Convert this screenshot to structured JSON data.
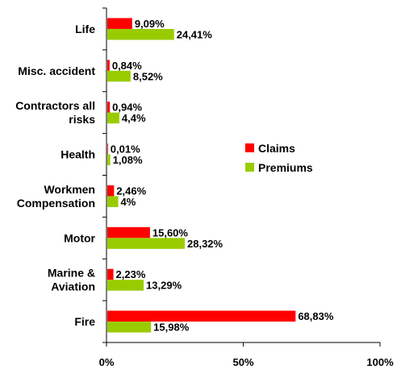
{
  "chart_data": {
    "type": "bar",
    "orientation": "horizontal",
    "categories": [
      [
        "Life"
      ],
      [
        "Misc. accident"
      ],
      [
        "Contractors all",
        "risks"
      ],
      [
        "Health"
      ],
      [
        "Workmen",
        "Compensation"
      ],
      [
        "Motor"
      ],
      [
        "Marine &",
        "Aviation"
      ],
      [
        "Fire"
      ]
    ],
    "series": [
      {
        "name": "Claims",
        "color": "#ff0000",
        "values": [
          9.09,
          0.84,
          0.94,
          0.01,
          2.46,
          15.6,
          2.23,
          68.83
        ],
        "labels": [
          "9,09%",
          "0,84%",
          "0,94%",
          "0,01%",
          "2,46%",
          "15,60%",
          "2,23%",
          "68,83%"
        ]
      },
      {
        "name": "Premiums",
        "color": "#99cc00",
        "values": [
          24.41,
          8.52,
          4.4,
          1.08,
          4,
          28.32,
          13.29,
          15.98
        ],
        "labels": [
          "24,41%",
          "8,52%",
          "4,4%",
          "1,08%",
          "4%",
          "28,32%",
          "13,29%",
          "15,98%"
        ]
      }
    ],
    "xlim": [
      0,
      100
    ],
    "xticks": [
      0,
      50,
      100
    ],
    "xtick_labels": [
      "0%",
      "50%",
      "100%"
    ],
    "grid": false,
    "legend_position": "right"
  }
}
